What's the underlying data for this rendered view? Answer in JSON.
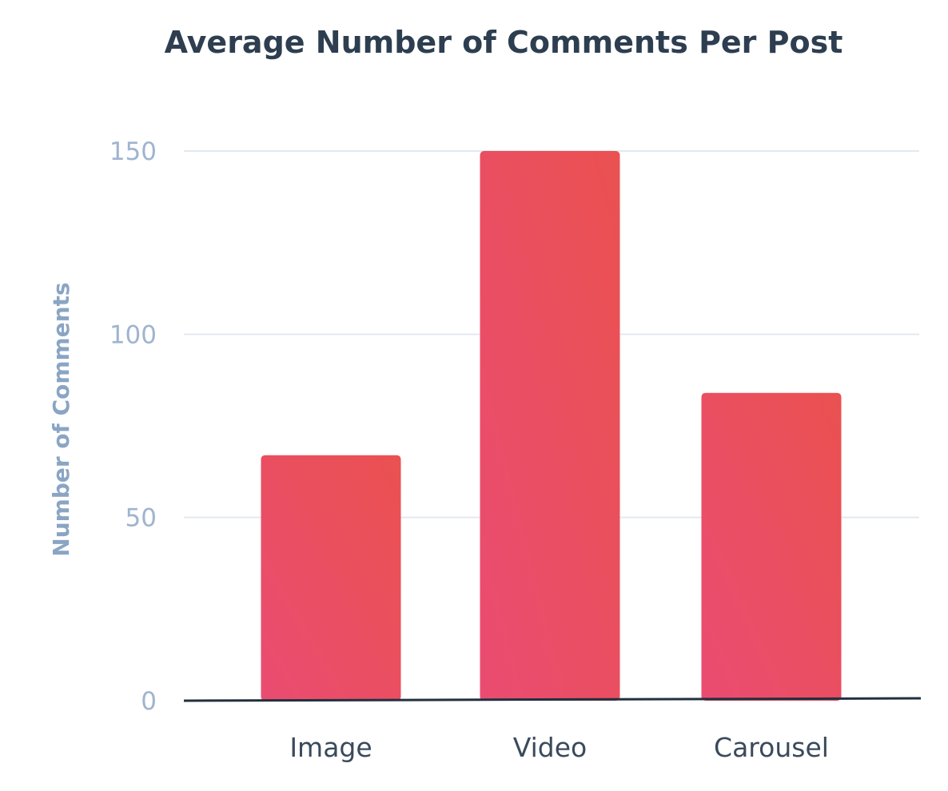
{
  "chart_data": {
    "type": "bar",
    "title": "Average Number of Comments Per Post",
    "xlabel": "",
    "ylabel": "Number of Comments",
    "categories": [
      "Image",
      "Video",
      "Carousel"
    ],
    "values": [
      67,
      150,
      84
    ],
    "ylim": [
      0,
      150
    ],
    "yticks": [
      0,
      50,
      100,
      150
    ],
    "grid": true,
    "legend": "none",
    "colors": {
      "bar_top": "#ea5150",
      "bar_bottom": "#ea4c72",
      "grid": "#e3e9f1",
      "baseline": "#22303f",
      "title": "#2d3e50",
      "tick": "#9fb4cf",
      "axis_label": "#8aa5c4"
    }
  }
}
